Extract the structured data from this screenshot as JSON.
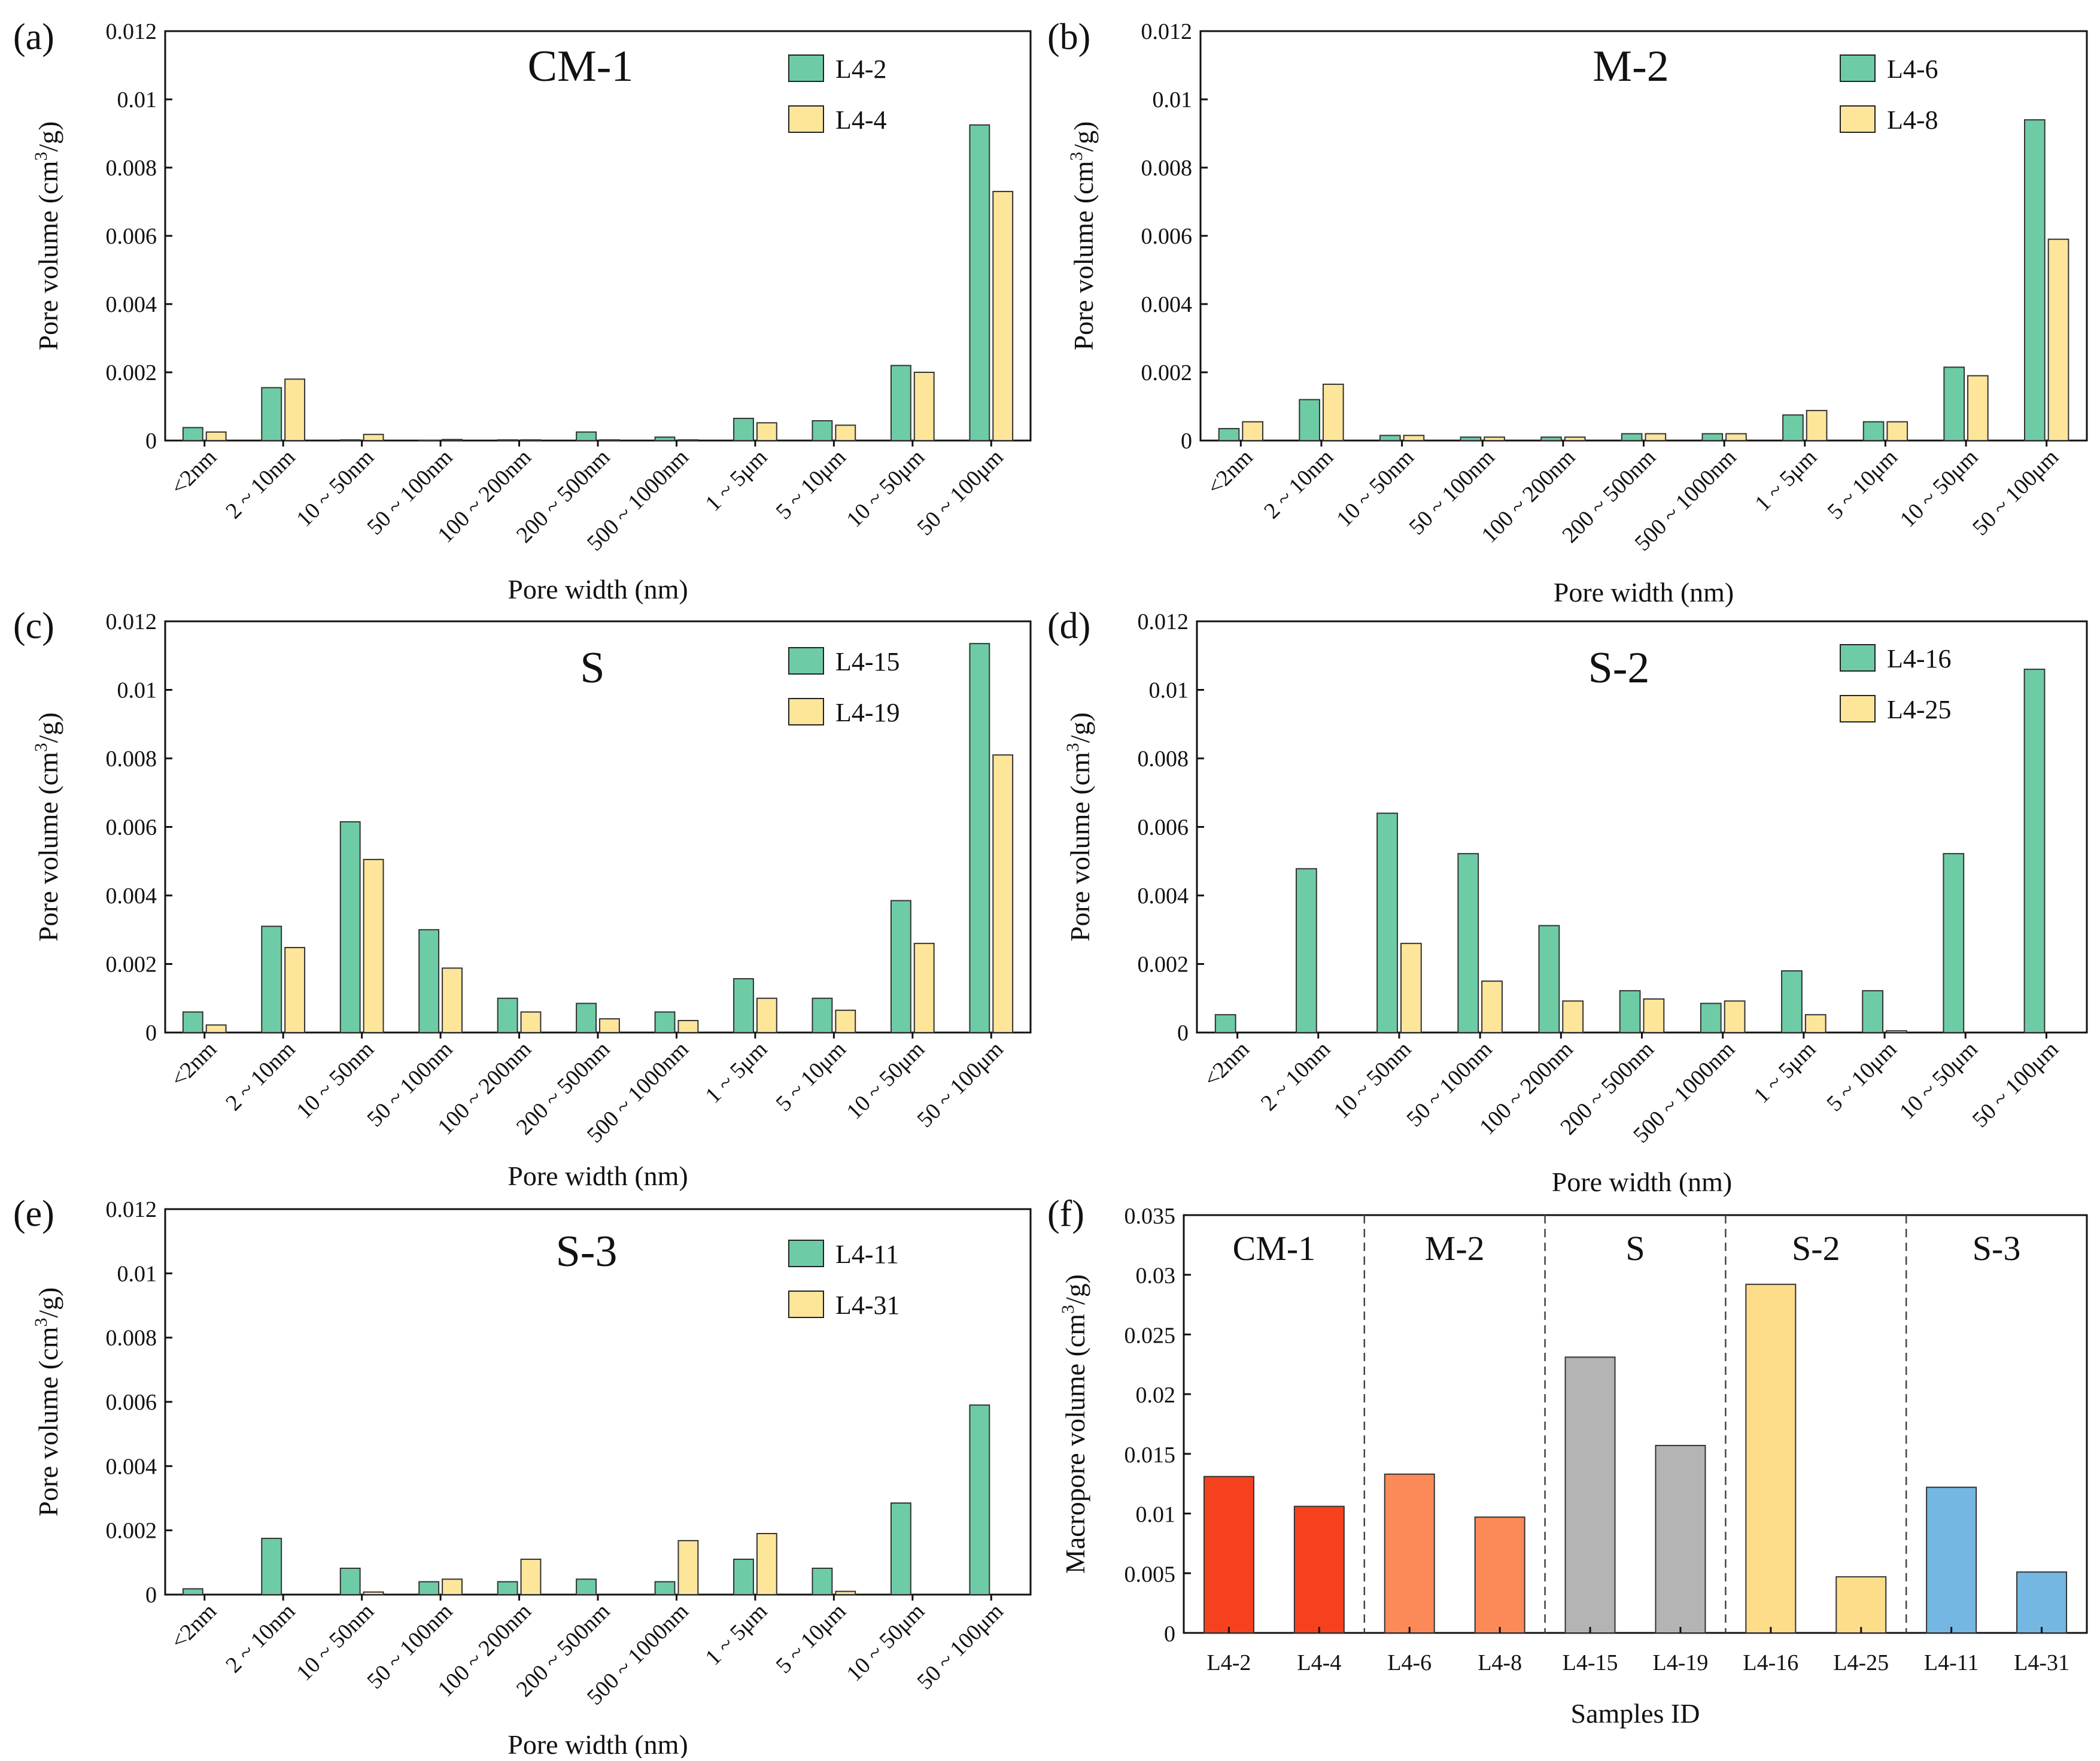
{
  "colors": {
    "green": "#6dcca6",
    "yellow": "#fde59a",
    "cm1": "#f5411e",
    "m2": "#fb8a58",
    "s": "#b4b4b4",
    "s2": "#fedd8a",
    "s3": "#74b7e2",
    "axis": "#111111"
  },
  "chart_data": [
    {
      "id": "a",
      "panel_label": "(a)",
      "type": "bar",
      "title": "CM-1",
      "xlabel": "Pore width (nm)",
      "ylabel": "Pore volume (cm³/g)",
      "ylim": [
        0,
        0.012
      ],
      "yticks": [
        "0",
        "0.002",
        "0.004",
        "0.006",
        "0.008",
        "0.01",
        "0.012"
      ],
      "categories": [
        "<2nm",
        "2 ~ 10nm",
        "10 ~ 50nm",
        "50 ~ 100nm",
        "100 ~ 200nm",
        "200 ~ 500nm",
        "500 ~ 1000nm",
        "1 ~ 5μm",
        "5 ~ 10μm",
        "10 ~ 50μm",
        "50 ~ 100μm"
      ],
      "series": [
        {
          "name": "L4-2",
          "color": "green",
          "values": [
            0.00038,
            0.00155,
            2e-05,
            1e-05,
            2e-05,
            0.00025,
            0.0001,
            0.00065,
            0.00058,
            0.0022,
            0.00925
          ]
        },
        {
          "name": "L4-4",
          "color": "yellow",
          "values": [
            0.00025,
            0.0018,
            0.00018,
            3e-05,
            2e-05,
            2e-05,
            2e-05,
            0.00052,
            0.00045,
            0.002,
            0.0073
          ]
        }
      ]
    },
    {
      "id": "b",
      "panel_label": "(b)",
      "type": "bar",
      "title": "M-2",
      "xlabel": "Pore width (nm)",
      "ylabel": "Pore volume (cm³/g)",
      "ylim": [
        0,
        0.012
      ],
      "yticks": [
        "0",
        "0.002",
        "0.004",
        "0.006",
        "0.008",
        "0.01",
        "0.012"
      ],
      "categories": [
        "<2nm",
        "2 ~ 10nm",
        "10 ~ 50nm",
        "50 ~ 100nm",
        "100 ~ 200nm",
        "200 ~ 500nm",
        "500 ~ 1000nm",
        "1 ~ 5μm",
        "5 ~ 10μm",
        "10 ~ 50μm",
        "50 ~ 100μm"
      ],
      "series": [
        {
          "name": "L4-6",
          "color": "green",
          "values": [
            0.00035,
            0.0012,
            0.00015,
            0.0001,
            0.0001,
            0.0002,
            0.0002,
            0.00075,
            0.00055,
            0.00215,
            0.0094
          ]
        },
        {
          "name": "L4-8",
          "color": "yellow",
          "values": [
            0.00055,
            0.00165,
            0.00015,
            0.0001,
            0.0001,
            0.0002,
            0.0002,
            0.00088,
            0.00055,
            0.0019,
            0.0059
          ]
        }
      ]
    },
    {
      "id": "c",
      "panel_label": "(c)",
      "type": "bar",
      "title": "S",
      "xlabel": "Pore width (nm)",
      "ylabel": "Pore volume (cm³/g)",
      "ylim": [
        0,
        0.012
      ],
      "yticks": [
        "0",
        "0.002",
        "0.004",
        "0.006",
        "0.008",
        "0.01",
        "0.012"
      ],
      "categories": [
        "<2nm",
        "2 ~ 10nm",
        "10 ~ 50nm",
        "50 ~ 100nm",
        "100 ~ 200nm",
        "200 ~ 500nm",
        "500 ~ 1000nm",
        "1 ~ 5μm",
        "5 ~ 10μm",
        "10 ~ 50μm",
        "50 ~ 100μm"
      ],
      "series": [
        {
          "name": "L4-15",
          "color": "green",
          "values": [
            0.0006,
            0.0031,
            0.00615,
            0.003,
            0.001,
            0.00085,
            0.0006,
            0.00157,
            0.001,
            0.00385,
            0.01135
          ]
        },
        {
          "name": "L4-19",
          "color": "yellow",
          "values": [
            0.00022,
            0.00248,
            0.00505,
            0.00188,
            0.0006,
            0.0004,
            0.00035,
            0.001,
            0.00065,
            0.0026,
            0.0081
          ]
        }
      ]
    },
    {
      "id": "d",
      "panel_label": "(d)",
      "type": "bar",
      "title": "S-2",
      "xlabel": "Pore width (nm)",
      "ylabel": "Pore volume (cm³/g)",
      "ylim": [
        0,
        0.012
      ],
      "yticks": [
        "0",
        "0.002",
        "0.004",
        "0.006",
        "0.008",
        "0.01",
        "0.012"
      ],
      "categories": [
        "<2nm",
        "2 ~ 10nm",
        "10 ~ 50nm",
        "50 ~ 100nm",
        "100 ~ 200nm",
        "200 ~ 500nm",
        "500 ~ 1000nm",
        "1 ~ 5μm",
        "5 ~ 10μm",
        "10 ~ 50μm",
        "50 ~ 100μm"
      ],
      "series": [
        {
          "name": "L4-16",
          "color": "green",
          "values": [
            0.00052,
            0.00478,
            0.0064,
            0.00522,
            0.00312,
            0.00122,
            0.00085,
            0.0018,
            0.00122,
            0.00522,
            0.0106
          ]
        },
        {
          "name": "L4-25",
          "color": "yellow",
          "values": [
            0,
            0,
            0.0026,
            0.0015,
            0.00092,
            0.00098,
            0.00092,
            0.00052,
            5e-05,
            0,
            0
          ]
        }
      ]
    },
    {
      "id": "e",
      "panel_label": "(e)",
      "type": "bar",
      "title": "S-3",
      "xlabel": "Pore width (nm)",
      "ylabel": "Pore volume (cm³/g)",
      "ylim": [
        0,
        0.012
      ],
      "yticks": [
        "0",
        "0.002",
        "0.004",
        "0.006",
        "0.008",
        "0.01",
        "0.012"
      ],
      "categories": [
        "<2nm",
        "2 ~ 10nm",
        "10 ~ 50nm",
        "50 ~ 100nm",
        "100 ~ 200nm",
        "200 ~ 500nm",
        "500 ~ 1000nm",
        "1 ~ 5μm",
        "5 ~ 10μm",
        "10 ~ 50μm",
        "50 ~ 100μm"
      ],
      "series": [
        {
          "name": "L4-11",
          "color": "green",
          "values": [
            0.00018,
            0.00175,
            0.00082,
            0.0004,
            0.0004,
            0.00048,
            0.0004,
            0.0011,
            0.00082,
            0.00285,
            0.0059
          ]
        },
        {
          "name": "L4-31",
          "color": "yellow",
          "values": [
            0,
            0,
            8e-05,
            0.00048,
            0.0011,
            0,
            0.00168,
            0.0019,
            0.0001,
            0,
            0
          ]
        }
      ]
    },
    {
      "id": "f",
      "panel_label": "(f)",
      "type": "bar",
      "xlabel": "Samples ID",
      "ylabel": "Macropore volume (cm³/g)",
      "ylim": [
        0,
        0.035
      ],
      "yticks": [
        "0",
        "0.005",
        "0.01",
        "0.015",
        "0.02",
        "0.025",
        "0.03",
        "0.035"
      ],
      "categories": [
        "L4-2",
        "L4-4",
        "L4-6",
        "L4-8",
        "L4-15",
        "L4-19",
        "L4-16",
        "L4-25",
        "L4-11",
        "L4-31"
      ],
      "values": [
        0.0131,
        0.0106,
        0.0133,
        0.0097,
        0.0231,
        0.0157,
        0.0292,
        0.0047,
        0.0122,
        0.0051
      ],
      "bar_colors": [
        "cm1",
        "cm1",
        "m2",
        "m2",
        "s",
        "s",
        "s2",
        "s2",
        "s3",
        "s3"
      ],
      "groups": [
        "CM-1",
        "M-2",
        "S",
        "S-2",
        "S-3"
      ]
    }
  ]
}
